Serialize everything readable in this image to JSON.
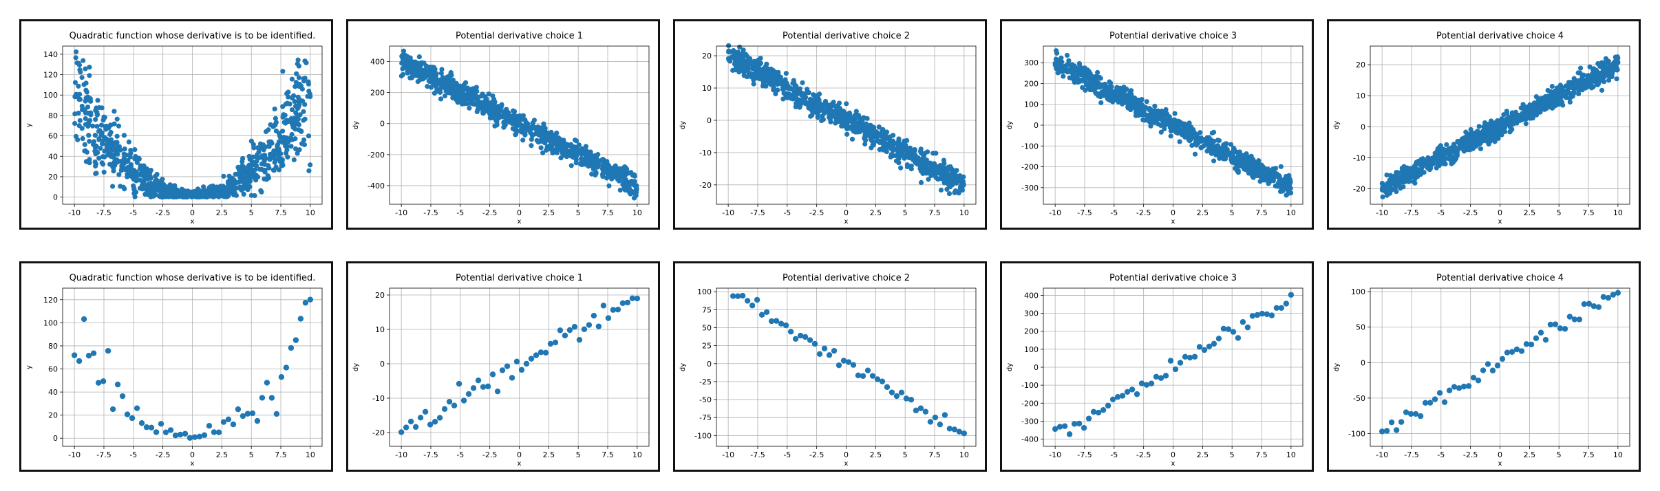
{
  "color": "#1f77b4",
  "chart_data": [
    {
      "type": "scatter",
      "row": 0,
      "col": 0,
      "seed": 11,
      "n": 900,
      "kind": "quad",
      "noise": 0.25,
      "noise_abs": 4,
      "title": "Quadratic function whose derivative is to be identified.",
      "xlabel": "x",
      "ylabel": "y",
      "xlim": [
        -11,
        11
      ],
      "ylim": [
        -7,
        148
      ],
      "xticks": [
        -10,
        -7.5,
        -5,
        -2.5,
        0,
        2.5,
        5,
        7.5,
        10
      ],
      "yticks": [
        0,
        20,
        40,
        60,
        80,
        100,
        120,
        140
      ],
      "grid": true,
      "legend": "none"
    },
    {
      "type": "scatter",
      "row": 0,
      "col": 1,
      "seed": 12,
      "n": 900,
      "kind": "lin",
      "a": -40,
      "b": 0,
      "noise": 35,
      "title": "Potential derivative choice 1",
      "xlabel": "x",
      "ylabel": "dy",
      "xlim": [
        -11,
        11
      ],
      "ylim": [
        -520,
        500
      ],
      "xticks": [
        -10,
        -7.5,
        -5,
        -2.5,
        0,
        2.5,
        5,
        7.5,
        10
      ],
      "yticks": [
        -400,
        -200,
        0,
        200,
        400
      ],
      "grid": true,
      "legend": "none"
    },
    {
      "type": "scatter",
      "row": 0,
      "col": 2,
      "seed": 13,
      "n": 900,
      "kind": "lin",
      "a": -2,
      "b": 0,
      "noise": 1.8,
      "title": "Potential derivative choice 2",
      "xlabel": "x",
      "ylabel": "dy",
      "xlim": [
        -11,
        11
      ],
      "ylim": [
        -26,
        23
      ],
      "xticks": [
        -10,
        -7.5,
        -5,
        -2.5,
        0,
        2.5,
        5,
        7.5,
        10
      ],
      "yticks": [
        -20,
        -10,
        0,
        10,
        20
      ],
      "grid": true,
      "legend": "none"
    },
    {
      "type": "scatter",
      "row": 0,
      "col": 3,
      "seed": 14,
      "n": 900,
      "kind": "lin",
      "a": -30,
      "b": 0,
      "noise": 25,
      "title": "Potential derivative choice 3",
      "xlabel": "x",
      "ylabel": "dy",
      "xlim": [
        -11,
        11
      ],
      "ylim": [
        -380,
        380
      ],
      "xticks": [
        -10,
        -7.5,
        -5,
        -2.5,
        0,
        2.5,
        5,
        7.5,
        10
      ],
      "yticks": [
        -300,
        -200,
        -100,
        0,
        100,
        200,
        300
      ],
      "grid": true,
      "legend": "none"
    },
    {
      "type": "scatter",
      "row": 0,
      "col": 4,
      "seed": 15,
      "n": 900,
      "kind": "lin",
      "a": 2,
      "b": 0,
      "noise": 1.6,
      "title": "Potential derivative choice 4",
      "xlabel": "x",
      "ylabel": "dy",
      "xlim": [
        -11,
        11
      ],
      "ylim": [
        -25,
        26
      ],
      "xticks": [
        -10,
        -7.5,
        -5,
        -2.5,
        0,
        2.5,
        5,
        7.5,
        10
      ],
      "yticks": [
        -20,
        -10,
        0,
        10,
        20
      ],
      "grid": true,
      "legend": "none"
    },
    {
      "type": "scatter",
      "row": 1,
      "col": 0,
      "seed": 21,
      "n": 50,
      "kind": "quad",
      "noise": 0.2,
      "noise_abs": 3,
      "title": "Quadratic function whose derivative is to be identified.",
      "xlabel": "x",
      "ylabel": "y",
      "xlim": [
        -11,
        11
      ],
      "ylim": [
        -7,
        130
      ],
      "xticks": [
        -10,
        -7.5,
        -5,
        -2.5,
        0,
        2.5,
        5,
        7.5,
        10
      ],
      "yticks": [
        0,
        20,
        40,
        60,
        80,
        100,
        120
      ],
      "grid": true,
      "legend": "none"
    },
    {
      "type": "scatter",
      "row": 1,
      "col": 1,
      "seed": 22,
      "n": 50,
      "kind": "lin",
      "a": 2,
      "b": 0,
      "noise": 1.4,
      "title": "Potential derivative choice 1",
      "xlabel": "x",
      "ylabel": "dy",
      "xlim": [
        -11,
        11
      ],
      "ylim": [
        -24,
        22
      ],
      "xticks": [
        -10,
        -7.5,
        -5,
        -2.5,
        0,
        2.5,
        5,
        7.5,
        10
      ],
      "yticks": [
        -20,
        -10,
        0,
        10,
        20
      ],
      "grid": true,
      "legend": "none"
    },
    {
      "type": "scatter",
      "row": 1,
      "col": 2,
      "seed": 23,
      "n": 50,
      "kind": "lin",
      "a": -10,
      "b": 0,
      "noise": 6,
      "title": "Potential derivative choice 2",
      "xlabel": "x",
      "ylabel": "dy",
      "xlim": [
        -11,
        11
      ],
      "ylim": [
        -115,
        105
      ],
      "xticks": [
        -10,
        -7.5,
        -5,
        -2.5,
        0,
        2.5,
        5,
        7.5,
        10
      ],
      "yticks": [
        -100,
        -75,
        -50,
        -25,
        0,
        25,
        50,
        75,
        100
      ],
      "grid": true,
      "legend": "none"
    },
    {
      "type": "scatter",
      "row": 1,
      "col": 3,
      "seed": 24,
      "n": 50,
      "kind": "lin",
      "a": 38,
      "b": 0,
      "noise": 25,
      "title": "Potential derivative choice 3",
      "xlabel": "x",
      "ylabel": "dy",
      "xlim": [
        -11,
        11
      ],
      "ylim": [
        -440,
        440
      ],
      "xticks": [
        -10,
        -7.5,
        -5,
        -2.5,
        0,
        2.5,
        5,
        7.5,
        10
      ],
      "yticks": [
        -400,
        -300,
        -200,
        -100,
        0,
        100,
        200,
        300,
        400
      ],
      "grid": true,
      "legend": "none"
    },
    {
      "type": "scatter",
      "row": 1,
      "col": 4,
      "seed": 25,
      "n": 50,
      "kind": "lin",
      "a": 10,
      "b": 0,
      "noise": 6,
      "title": "Potential derivative choice 4",
      "xlabel": "x",
      "ylabel": "dy",
      "xlim": [
        -11,
        11
      ],
      "ylim": [
        -118,
        105
      ],
      "xticks": [
        -10,
        -7.5,
        -5,
        -2.5,
        0,
        2.5,
        5,
        7.5,
        10
      ],
      "yticks": [
        -100,
        -50,
        0,
        50,
        100
      ],
      "grid": true,
      "legend": "none"
    }
  ]
}
